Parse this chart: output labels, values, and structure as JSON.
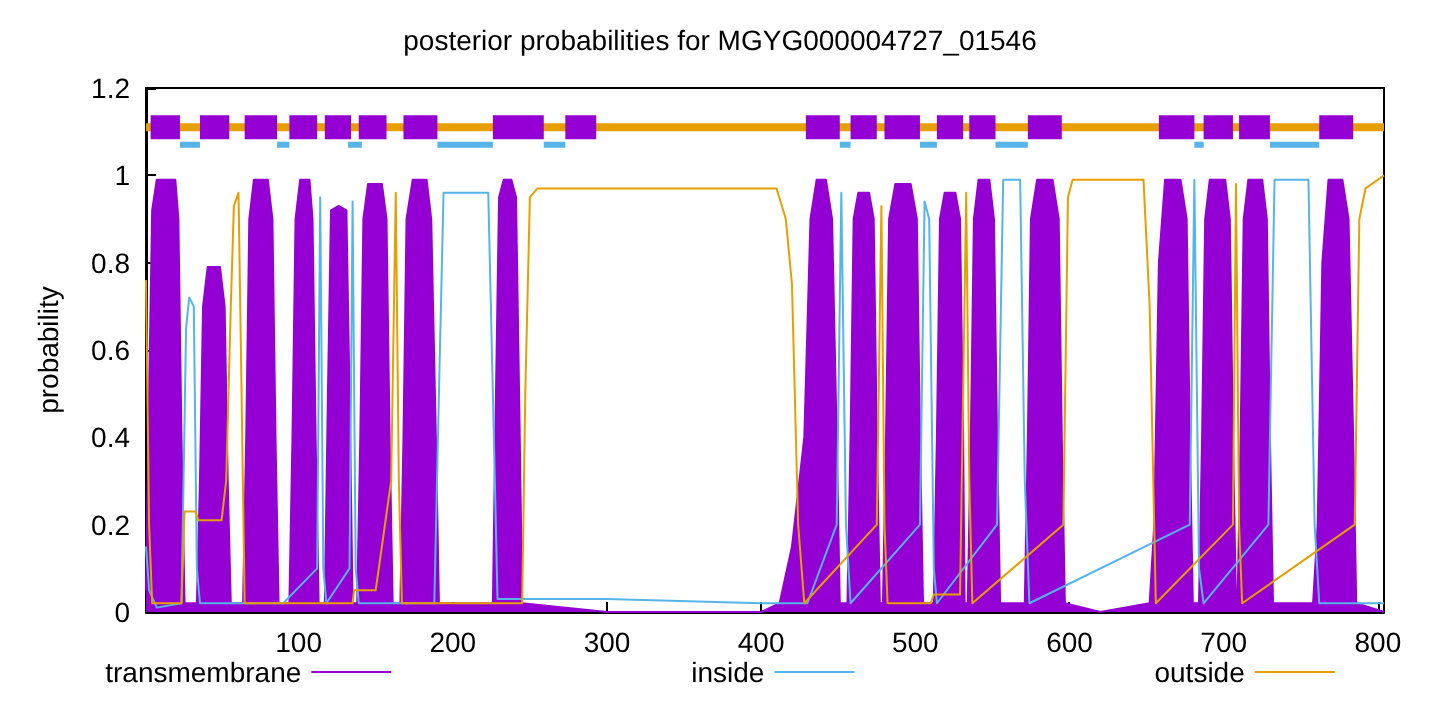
{
  "chart_data": {
    "type": "line",
    "title": "posterior probabilities for MGYG000004727_01546",
    "ylabel": "probability",
    "xlim": [
      1,
      804
    ],
    "xticks": [
      100,
      200,
      300,
      400,
      500,
      600,
      700,
      800
    ],
    "ylim": [
      0,
      1.2
    ],
    "yticks": [
      0,
      0.2,
      0.4,
      0.6,
      0.8,
      1,
      1.2
    ],
    "grid": false,
    "legend": "bottom",
    "line_style": "solid",
    "series": [
      {
        "name": "transmembrane",
        "type": "area",
        "color": "#9400d3",
        "x": [
          1,
          3,
          5,
          8,
          20,
          22,
          24,
          26,
          34,
          36,
          38,
          41,
          49,
          52,
          54,
          56,
          64,
          66,
          68,
          71,
          80,
          83,
          85,
          87,
          94,
          96,
          98,
          101,
          107,
          109,
          111,
          113,
          117,
          119,
          121,
          126,
          131,
          133,
          135,
          138,
          140,
          142,
          145,
          154,
          157,
          159,
          161,
          166,
          168,
          170,
          174,
          183,
          186,
          189,
          191,
          226,
          228,
          230,
          233,
          238,
          241,
          243,
          245,
          300,
          400,
          412,
          420,
          428,
          432,
          436,
          442,
          446,
          449,
          451,
          456,
          458,
          460,
          463,
          470,
          473,
          475,
          477,
          479,
          481,
          483,
          487,
          497,
          501,
          503,
          505,
          512,
          514,
          516,
          519,
          526,
          529,
          531,
          532,
          534,
          536,
          538,
          541,
          548,
          551,
          553,
          555,
          571,
          573,
          575,
          579,
          589,
          593,
          595,
          597,
          620,
          652,
          655,
          658,
          662,
          672,
          676,
          678,
          680,
          684,
          686,
          688,
          691,
          701,
          704,
          706,
          708,
          709,
          711,
          713,
          716,
          725,
          728,
          730,
          732,
          758,
          761,
          764,
          768,
          777,
          781,
          784,
          786,
          804
        ],
        "values": [
          0.05,
          0.5,
          0.92,
          0.99,
          0.99,
          0.9,
          0.4,
          0.02,
          0.02,
          0.3,
          0.7,
          0.79,
          0.79,
          0.7,
          0.3,
          0.02,
          0.02,
          0.4,
          0.9,
          0.99,
          0.99,
          0.9,
          0.4,
          0.02,
          0.02,
          0.4,
          0.9,
          0.99,
          0.99,
          0.9,
          0.4,
          0.02,
          0.02,
          0.5,
          0.92,
          0.93,
          0.92,
          0.5,
          0.02,
          0.02,
          0.4,
          0.9,
          0.98,
          0.98,
          0.9,
          0.4,
          0.02,
          0.02,
          0.4,
          0.9,
          0.99,
          0.99,
          0.9,
          0.4,
          0.02,
          0.02,
          0.5,
          0.95,
          0.99,
          0.99,
          0.95,
          0.5,
          0.02,
          0,
          0,
          0.02,
          0.15,
          0.4,
          0.9,
          0.99,
          0.99,
          0.9,
          0.4,
          0.02,
          0.02,
          0.4,
          0.9,
          0.96,
          0.96,
          0.9,
          0.4,
          0.02,
          0.02,
          0.4,
          0.9,
          0.98,
          0.98,
          0.9,
          0.4,
          0.02,
          0.02,
          0.4,
          0.9,
          0.96,
          0.96,
          0.9,
          0.4,
          0.02,
          0.02,
          0.4,
          0.9,
          0.99,
          0.99,
          0.9,
          0.4,
          0.02,
          0.02,
          0.4,
          0.9,
          0.99,
          0.99,
          0.9,
          0.4,
          0.02,
          0,
          0.02,
          0.2,
          0.8,
          0.99,
          0.99,
          0.9,
          0.4,
          0.02,
          0.02,
          0.4,
          0.9,
          0.99,
          0.99,
          0.9,
          0.4,
          0.02,
          0.02,
          0.4,
          0.9,
          0.99,
          0.99,
          0.9,
          0.4,
          0.02,
          0.02,
          0.2,
          0.8,
          0.99,
          0.99,
          0.9,
          0.4,
          0.02,
          0
        ]
      },
      {
        "name": "inside",
        "color": "#56b4e9",
        "x": [
          1,
          3,
          8,
          24,
          27,
          29,
          32,
          34,
          36,
          90,
          112,
          114,
          116,
          118,
          133,
          135,
          137,
          139,
          188,
          191,
          194,
          223,
          226,
          229,
          248,
          300,
          400,
          430,
          449,
          452,
          455,
          458,
          503,
          506,
          509,
          512,
          514,
          553,
          557,
          568,
          571,
          574,
          678,
          681,
          684,
          687,
          729,
          733,
          755,
          759,
          762,
          804
        ],
        "values": [
          0.15,
          0.05,
          0.01,
          0.02,
          0.65,
          0.72,
          0.7,
          0.1,
          0.02,
          0.02,
          0.1,
          0.95,
          0.1,
          0.02,
          0.1,
          0.94,
          0.1,
          0.02,
          0.02,
          0.5,
          0.96,
          0.96,
          0.5,
          0.03,
          0.03,
          0.03,
          0.02,
          0.02,
          0.2,
          0.96,
          0.2,
          0.02,
          0.2,
          0.94,
          0.9,
          0.1,
          0.02,
          0.2,
          0.99,
          0.99,
          0.3,
          0.02,
          0.2,
          0.99,
          0.1,
          0.02,
          0.2,
          0.99,
          0.99,
          0.2,
          0.02,
          0.02
        ]
      },
      {
        "name": "outside",
        "color": "#e69f00",
        "x": [
          1,
          3,
          5,
          24,
          26,
          33,
          35,
          50,
          53,
          56,
          58,
          61,
          63,
          65,
          135,
          136,
          150,
          160,
          163,
          165,
          167,
          245,
          247,
          250,
          255,
          410,
          416,
          420,
          424,
          428,
          475,
          478,
          480,
          482,
          510,
          512,
          529,
          531,
          533,
          535,
          537,
          596,
          599,
          602,
          648,
          652,
          656,
          706,
          708,
          710,
          712,
          785,
          788,
          792,
          800,
          804
        ],
        "values": [
          0.76,
          0.2,
          0.02,
          0.02,
          0.23,
          0.23,
          0.21,
          0.21,
          0.3,
          0.7,
          0.93,
          0.96,
          0.5,
          0.02,
          0.02,
          0.05,
          0.05,
          0.3,
          0.96,
          0.3,
          0.02,
          0.02,
          0.5,
          0.95,
          0.97,
          0.97,
          0.9,
          0.75,
          0.2,
          0.02,
          0.2,
          0.93,
          0.2,
          0.02,
          0.02,
          0.04,
          0.04,
          0.5,
          0.96,
          0.3,
          0.02,
          0.2,
          0.95,
          0.99,
          0.99,
          0.7,
          0.02,
          0.2,
          0.98,
          0.2,
          0.02,
          0.2,
          0.9,
          0.97,
          0.99,
          1
        ]
      },
      {
        "color": "#e69f00",
        "x": [
          1,
          804
        ],
        "values": [
          1.11,
          1.11
        ]
      },
      {
        "color": "#56b4e9",
        "x": [
          23,
          36,
          null,
          86,
          94,
          null,
          132,
          141,
          null,
          190,
          226,
          null,
          259,
          273,
          null,
          451,
          458,
          null,
          503,
          514,
          null,
          552,
          573,
          null,
          681,
          687,
          null,
          730,
          762
        ],
        "values": [
          1.07,
          1.07,
          null,
          1.07,
          1.07,
          null,
          1.07,
          1.07,
          null,
          1.07,
          1.07,
          null,
          1.07,
          1.07,
          null,
          1.07,
          1.07,
          null,
          1.07,
          1.07,
          null,
          1.07,
          1.07,
          null,
          1.07,
          1.07,
          null,
          1.07,
          1.07
        ]
      },
      {
        "color": "#9400d3",
        "x": [
          4,
          23,
          null,
          36,
          55,
          null,
          65,
          86,
          null,
          94,
          112,
          null,
          117,
          134,
          null,
          139,
          157,
          null,
          168,
          190,
          null,
          226,
          245,
          null,
          245,
          259,
          null,
          273,
          293,
          null,
          429,
          451,
          null,
          458,
          475,
          null,
          480,
          503,
          null,
          514,
          531,
          null,
          535,
          552,
          null,
          573,
          595,
          null,
          658,
          681,
          null,
          687,
          706,
          null,
          710,
          730,
          null,
          762,
          784
        ],
        "values": [
          1.11,
          1.11,
          null,
          1.11,
          1.11,
          null,
          1.11,
          1.11,
          null,
          1.11,
          1.11,
          null,
          1.11,
          1.11,
          null,
          1.11,
          1.11,
          null,
          1.11,
          1.11,
          null,
          1.11,
          1.11,
          null,
          1.11,
          1.11,
          null,
          1.11,
          1.11,
          null,
          1.11,
          1.11,
          null,
          1.11,
          1.11,
          null,
          1.11,
          1.11,
          null,
          1.11,
          1.11,
          null,
          1.11,
          1.11,
          null,
          1.11,
          1.11,
          null,
          1.11,
          1.11,
          null,
          1.11,
          1.11,
          null,
          1.11,
          1.11,
          null,
          1.11,
          1.11
        ]
      }
    ]
  }
}
